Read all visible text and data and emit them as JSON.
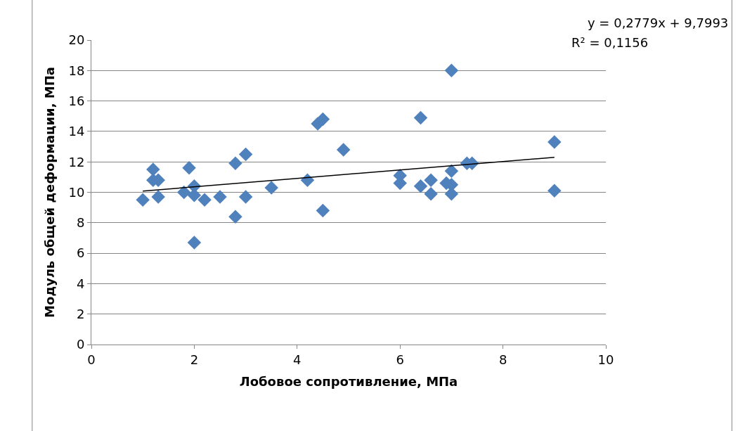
{
  "chart_data": {
    "type": "scatter",
    "xlabel": "Лобовое сопротивление, МПа",
    "ylabel": "Модуль общей деформации, МПа",
    "xlim": [
      0,
      10
    ],
    "xticks": [
      0,
      2,
      4,
      6,
      8,
      10
    ],
    "ylim": [
      0,
      20
    ],
    "yticks": [
      0,
      2,
      4,
      6,
      8,
      10,
      12,
      14,
      16,
      18,
      20
    ],
    "grid": "y",
    "legend": false,
    "series": [
      {
        "marker": "diamond",
        "color": "#4f81bd",
        "x": [
          1.0,
          1.2,
          1.2,
          1.3,
          1.3,
          1.8,
          1.9,
          2.0,
          2.0,
          2.0,
          2.2,
          2.5,
          2.8,
          2.8,
          3.0,
          3.0,
          3.5,
          4.2,
          4.4,
          4.5,
          4.5,
          4.9,
          6.0,
          6.0,
          6.4,
          6.4,
          6.6,
          6.6,
          6.9,
          7.0,
          7.0,
          7.0,
          7.0,
          7.3,
          7.4,
          9.0,
          9.0
        ],
        "values": [
          9.5,
          11.5,
          10.8,
          10.8,
          9.7,
          10.0,
          11.6,
          10.4,
          9.8,
          6.7,
          9.5,
          9.7,
          11.9,
          8.4,
          12.5,
          9.7,
          10.3,
          10.8,
          14.5,
          14.8,
          8.8,
          12.8,
          11.1,
          10.6,
          14.9,
          10.4,
          10.8,
          9.9,
          10.6,
          11.4,
          10.5,
          9.9,
          18.0,
          11.9,
          11.9,
          13.3,
          10.1
        ]
      },
      {
        "type": "line",
        "color": "#000000",
        "x": [
          1,
          9
        ],
        "values": [
          10.08,
          12.3
        ]
      }
    ],
    "annotations": [
      "y = 0,2779x + 9,7993",
      "R² = 0,1156"
    ]
  }
}
